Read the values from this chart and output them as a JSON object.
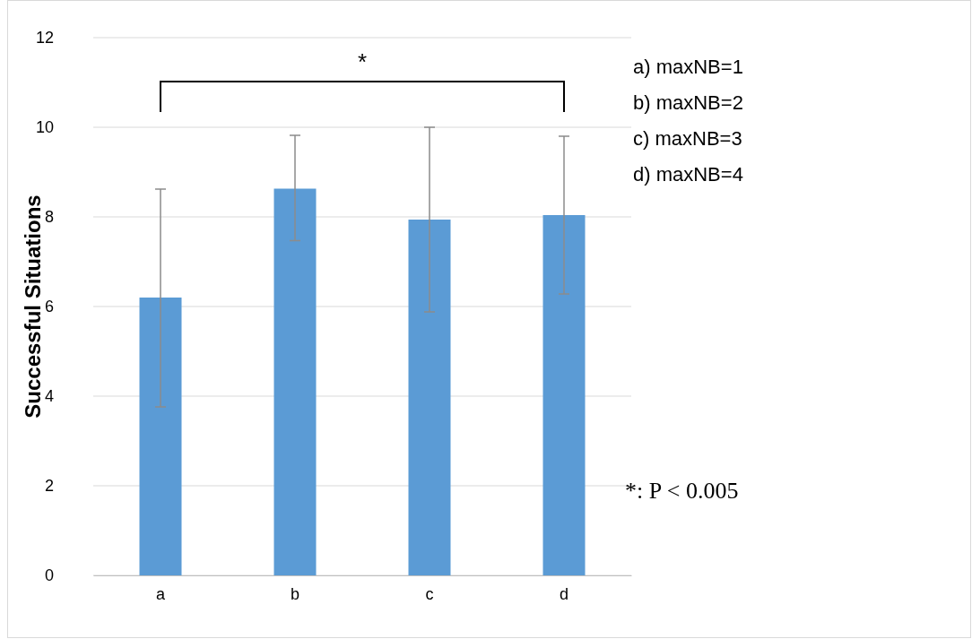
{
  "chart_data": {
    "type": "bar",
    "ylabel": "Successful Situations",
    "categories": [
      "a",
      "b",
      "c",
      "d"
    ],
    "values": [
      6.2,
      8.63,
      7.94,
      8.04
    ],
    "color": "#5b9bd5",
    "errors": [
      [
        3.76,
        8.62
      ],
      [
        7.47,
        9.82
      ],
      [
        5.88,
        10.0
      ],
      [
        6.28,
        9.8
      ]
    ],
    "ylim": [
      0,
      12
    ],
    "yticks": [
      0,
      2,
      4,
      6,
      8,
      10,
      12
    ],
    "grid": "y",
    "annotations": [
      "*",
      "a) maxNB=1",
      "b) maxNB=2",
      "c) maxNB=3",
      "d) maxNB=4",
      "*: P < 0.005"
    ]
  }
}
